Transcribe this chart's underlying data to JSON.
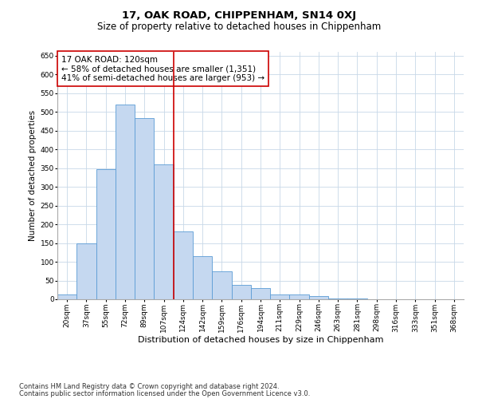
{
  "title": "17, OAK ROAD, CHIPPENHAM, SN14 0XJ",
  "subtitle": "Size of property relative to detached houses in Chippenham",
  "xlabel": "Distribution of detached houses by size in Chippenham",
  "ylabel": "Number of detached properties",
  "footnote1": "Contains HM Land Registry data © Crown copyright and database right 2024.",
  "footnote2": "Contains public sector information licensed under the Open Government Licence v3.0.",
  "categories": [
    "20sqm",
    "37sqm",
    "55sqm",
    "72sqm",
    "89sqm",
    "107sqm",
    "124sqm",
    "142sqm",
    "159sqm",
    "176sqm",
    "194sqm",
    "211sqm",
    "229sqm",
    "246sqm",
    "263sqm",
    "281sqm",
    "298sqm",
    "316sqm",
    "333sqm",
    "351sqm",
    "368sqm"
  ],
  "values": [
    13,
    150,
    346,
    519,
    483,
    359,
    180,
    115,
    74,
    38,
    29,
    12,
    12,
    8,
    3,
    2,
    1,
    0,
    0,
    0,
    0
  ],
  "bar_color": "#c5d8f0",
  "bar_edge_color": "#5b9bd5",
  "vline_index": 5,
  "vline_color": "#cc0000",
  "ylim": [
    0,
    660
  ],
  "yticks": [
    0,
    50,
    100,
    150,
    200,
    250,
    300,
    350,
    400,
    450,
    500,
    550,
    600,
    650
  ],
  "annotation_title": "17 OAK ROAD: 120sqm",
  "annotation_line1": "← 58% of detached houses are smaller (1,351)",
  "annotation_line2": "41% of semi-detached houses are larger (953) →",
  "annotation_box_color": "#ffffff",
  "annotation_border_color": "#cc0000",
  "bg_color": "#ffffff",
  "grid_color": "#c8d8e8",
  "title_fontsize": 9.5,
  "subtitle_fontsize": 8.5,
  "xlabel_fontsize": 8,
  "ylabel_fontsize": 7.5,
  "tick_fontsize": 6.5,
  "annotation_fontsize": 7.5,
  "footnote_fontsize": 6
}
